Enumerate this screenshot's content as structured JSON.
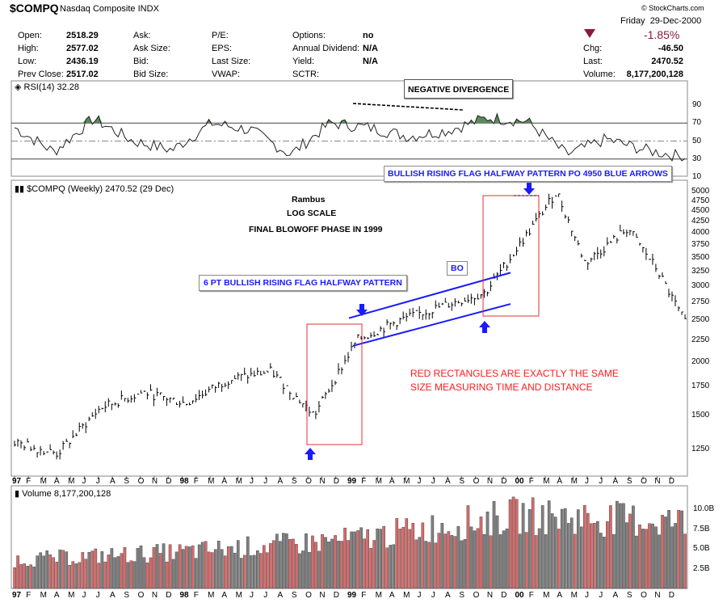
{
  "header": {
    "symbol": "$COMPQ",
    "name": "Nasdaq Composite",
    "exchange": "INDX",
    "brand": "© StockCharts.com",
    "day": "Friday",
    "date": "29-Dec-2000",
    "pct_change": "-1.85%",
    "down_color": "#8b1a3a",
    "left_fields": [
      {
        "label": "Open:",
        "value": "2518.29"
      },
      {
        "label": "High:",
        "value": "2577.02"
      },
      {
        "label": "Low:",
        "value": "2436.19"
      },
      {
        "label": "Prev Close:",
        "value": "2517.02"
      }
    ],
    "mid1_fields": [
      {
        "label": "Ask:",
        "value": ""
      },
      {
        "label": "Ask Size:",
        "value": ""
      },
      {
        "label": "Bid:",
        "value": ""
      },
      {
        "label": "Bid Size:",
        "value": ""
      }
    ],
    "mid2_fields": [
      {
        "label": "P/E:",
        "value": ""
      },
      {
        "label": "EPS:",
        "value": ""
      },
      {
        "label": "Last Size:",
        "value": ""
      },
      {
        "label": "VWAP:",
        "value": ""
      }
    ],
    "mid3_fields": [
      {
        "label": "Options:",
        "value": "no"
      },
      {
        "label": "Annual Dividend:",
        "value": "N/A"
      },
      {
        "label": "Yield:",
        "value": "N/A"
      },
      {
        "label": "SCTR:",
        "value": ""
      }
    ],
    "right_fields": [
      {
        "label": "Chg:",
        "value": "-46.50"
      },
      {
        "label": "Last:",
        "value": "2470.52"
      },
      {
        "label": "Volume:",
        "value": "8,177,200,128"
      }
    ]
  },
  "rsi_panel": {
    "label": "RSI(14) 32.28",
    "ticks": [
      "90",
      "70",
      "50",
      "30",
      "10"
    ],
    "annotation": "NEGATIVE DIVERGENCE",
    "fill_color": "#5a8a5a"
  },
  "price_panel": {
    "label": "$COMPQ (Weekly) 2470.52 (29 Dec)",
    "ticks": [
      "5000",
      "4750",
      "4500",
      "4250",
      "4000",
      "3750",
      "3500",
      "3250",
      "3000",
      "2750",
      "2500",
      "2250",
      "2000",
      "1750",
      "1500",
      "1250"
    ],
    "annotations": {
      "rambus": "Rambus",
      "log_scale": "LOG SCALE",
      "blowoff": "FINAL BLOWOFF PHASE IN 1999",
      "flag_top": "BULLISH RISING FLAG HALFWAY PATTERN PO 4950 BLUE ARROWS",
      "flag_mid": "6 PT BULLISH RISING FLAG HALFWAY PATTERN",
      "bo": "BO",
      "red_line1": "RED RECTANGLES ARE EXACTLY THE SAME",
      "red_line2": "SIZE MEASURING TIME AND DISTANCE"
    },
    "colors": {
      "channel": "#1a1aff",
      "rect": "#e03030",
      "arrow": "#1a1aff"
    }
  },
  "volume_panel": {
    "label": "Volume 8,177,200,128",
    "ticks": [
      "10.0B",
      "7.5B",
      "5.0B",
      "2.5B"
    ],
    "up_color": "#d96a6a",
    "down_color": "#808080"
  },
  "x_axis": {
    "labels": [
      "97",
      "F",
      "M",
      "A",
      "M",
      "J",
      "J",
      "A",
      "S",
      "O",
      "N",
      "D",
      "98",
      "F",
      "M",
      "A",
      "M",
      "J",
      "J",
      "A",
      "S",
      "O",
      "N",
      "D",
      "99",
      "F",
      "M",
      "A",
      "M",
      "J",
      "J",
      "A",
      "S",
      "O",
      "N",
      "D",
      "00",
      "F",
      "M",
      "A",
      "M",
      "J",
      "J",
      "A",
      "S",
      "O",
      "N",
      "D"
    ]
  },
  "chart_data": {
    "type": "line",
    "title": "$COMPQ (Weekly) 2470.52 (29 Dec)",
    "scale": "log",
    "x_range": [
      "Jan 1997",
      "Dec 2000"
    ],
    "ylim": [
      1150,
      5150
    ],
    "series": [
      {
        "name": "$COMPQ",
        "x": [
          "Jan 1997",
          "Apr 1997",
          "Jul 1997",
          "Oct 1997",
          "Jan 1998",
          "Apr 1998",
          "Jul 1998",
          "Oct 1998",
          "Jan 1999",
          "Apr 1999",
          "Jul 1999",
          "Oct 1999",
          "Jan 2000",
          "Mar 2000",
          "May 2000",
          "Aug 2000",
          "Oct 2000",
          "Dec 2000"
        ],
        "values": [
          1300,
          1220,
          1560,
          1700,
          1600,
          1820,
          1900,
          1500,
          2250,
          2500,
          2700,
          2900,
          4000,
          5000,
          3400,
          4100,
          3300,
          2470
        ]
      }
    ],
    "rsi": {
      "name": "RSI(14) 32.28",
      "ylim": [
        10,
        90
      ],
      "x": [
        "Jan 1997",
        "Apr 1997",
        "Aug 1997",
        "Oct 1997",
        "Dec 1997",
        "Mar 1998",
        "Jul 1998",
        "Sep 1998",
        "Dec 1998",
        "Mar 1999",
        "Jun 1999",
        "Sep 1999",
        "Nov 1999",
        "Feb 2000",
        "Apr 2000",
        "Jul 2000",
        "Oct 2000",
        "Dec 2000"
      ],
      "values": [
        65,
        38,
        75,
        50,
        40,
        70,
        62,
        35,
        70,
        65,
        55,
        62,
        76,
        72,
        35,
        52,
        40,
        32
      ]
    },
    "volume": {
      "name": "Volume 8,177,200,128",
      "ylim": [
        0,
        12.5
      ],
      "x": [
        "Jan 1997",
        "Jan 1998",
        "Jan 1999",
        "Jan 2000",
        "Dec 2000"
      ],
      "values": [
        3.5,
        4.5,
        6.0,
        9.0,
        8.2
      ]
    }
  }
}
